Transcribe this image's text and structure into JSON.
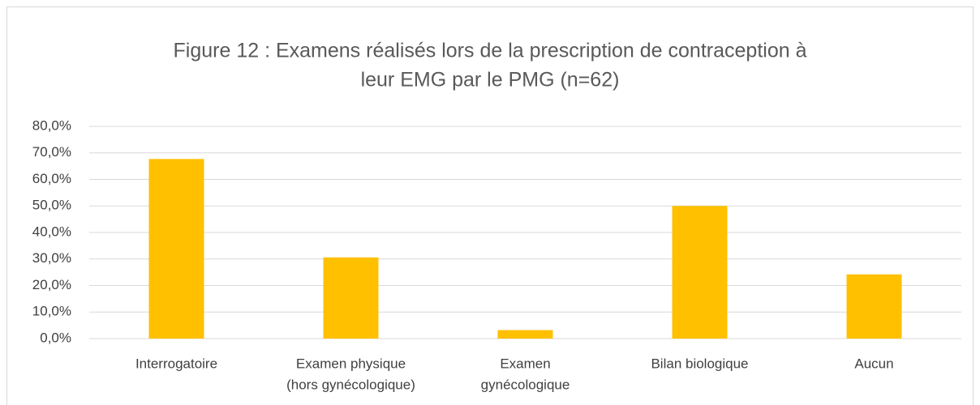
{
  "chart_data": {
    "type": "bar",
    "title": [
      "Figure 12 : Examens réalisés lors de la prescription de contraception à",
      "leur EMG par le PMG (n=62)"
    ],
    "categories": [
      [
        "Interrogatoire"
      ],
      [
        "Examen physique",
        "(hors gynécologique)"
      ],
      [
        "Examen",
        "gynécologique"
      ],
      [
        "Bilan biologique"
      ],
      [
        "Aucun"
      ]
    ],
    "values": [
      67.7,
      30.6,
      3.2,
      50.0,
      24.2
    ],
    "color": "#ffc000",
    "ylim": [
      0,
      80
    ],
    "yticks": [
      {
        "value": 0,
        "label": "0,0%"
      },
      {
        "value": 10,
        "label": "10,0%"
      },
      {
        "value": 20,
        "label": "20,0%"
      },
      {
        "value": 30,
        "label": "30,0%"
      },
      {
        "value": 40,
        "label": "40,0%"
      },
      {
        "value": 50,
        "label": "50,0%"
      },
      {
        "value": 60,
        "label": "60,0%"
      },
      {
        "value": 70,
        "label": "70,0%"
      },
      {
        "value": 80,
        "label": "80,0%"
      }
    ],
    "grid": true
  }
}
